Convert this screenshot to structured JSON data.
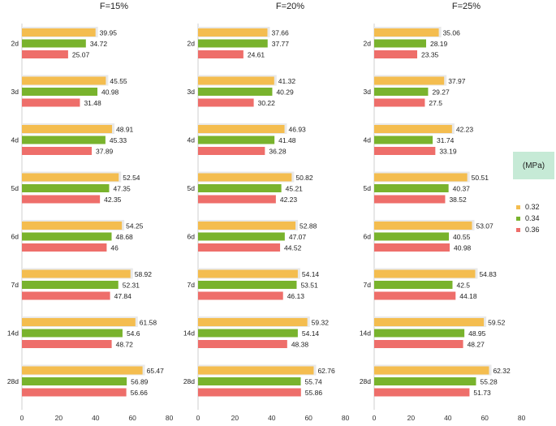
{
  "chart_data": {
    "type": "bar",
    "orientation": "horizontal",
    "unit": "(MPa)",
    "categories": [
      "2d",
      "3d",
      "4d",
      "5d",
      "6d",
      "7d",
      "14d",
      "28d"
    ],
    "x_ticks": [
      0,
      20,
      40,
      60,
      80
    ],
    "xlim": [
      0,
      80
    ],
    "colors": [
      "#f4bd4f",
      "#79b32d",
      "#ee6e6a"
    ],
    "legend": [
      "0.32",
      "0.34",
      "0.36"
    ],
    "panels": [
      {
        "title": "F=15%",
        "series": [
          {
            "name": "0.32",
            "values": [
              39.95,
              45.55,
              48.91,
              52.54,
              54.25,
              58.92,
              61.58,
              65.47
            ]
          },
          {
            "name": "0.34",
            "values": [
              34.72,
              40.98,
              45.33,
              47.35,
              48.68,
              52.31,
              54.6,
              56.89
            ]
          },
          {
            "name": "0.36",
            "values": [
              25.07,
              31.48,
              37.89,
              42.35,
              46,
              47.84,
              48.72,
              56.66
            ]
          }
        ]
      },
      {
        "title": "F=20%",
        "series": [
          {
            "name": "0.32",
            "values": [
              37.66,
              41.32,
              46.93,
              50.82,
              52.88,
              54.14,
              59.32,
              62.76
            ]
          },
          {
            "name": "0.34",
            "values": [
              37.77,
              40.29,
              41.48,
              45.21,
              47.07,
              53.51,
              54.14,
              55.74
            ]
          },
          {
            "name": "0.36",
            "values": [
              24.61,
              30.22,
              36.28,
              42.23,
              44.52,
              46.13,
              48.38,
              55.86
            ]
          }
        ]
      },
      {
        "title": "F=25%",
        "series": [
          {
            "name": "0.32",
            "values": [
              35.06,
              37.97,
              42.23,
              50.51,
              53.07,
              54.83,
              59.52,
              62.32
            ]
          },
          {
            "name": "0.34",
            "values": [
              28.19,
              29.27,
              31.74,
              40.37,
              40.55,
              42.5,
              48.95,
              55.28
            ]
          },
          {
            "name": "0.36",
            "values": [
              23.35,
              27.5,
              33.19,
              38.52,
              40.98,
              44.18,
              48.27,
              51.73
            ]
          }
        ]
      }
    ]
  }
}
